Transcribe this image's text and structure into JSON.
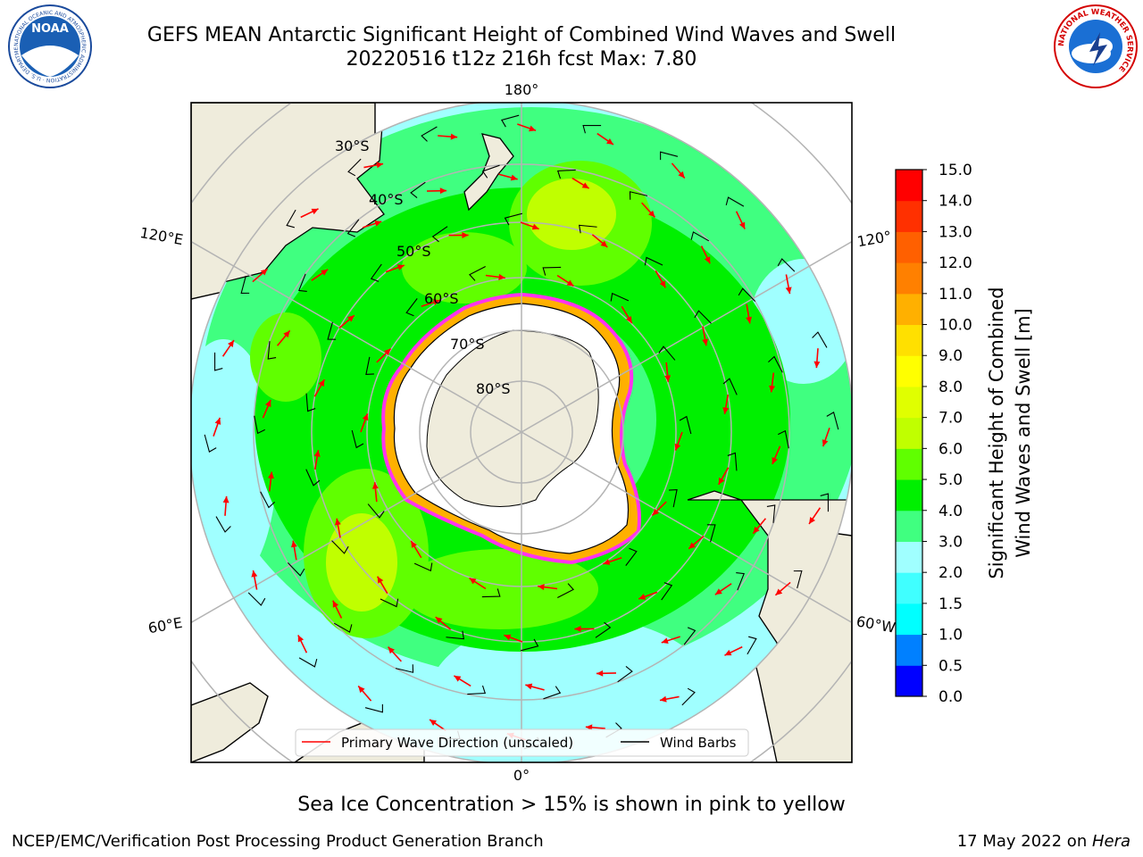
{
  "header": {
    "title_line1": "GEFS MEAN Antarctic Significant Height of Combined Wind Waves and Swell",
    "title_line2": "20220516 t12z 216h fcst   Max: 7.80"
  },
  "logos": {
    "noaa": {
      "text": "NOAA",
      "ring_text": "NATIONAL OCEANIC AND ATMOSPHERIC ADMINISTRATION · U.S. DEPARTMENT OF COMMERCE",
      "icon": "noaa-logo-icon"
    },
    "nws": {
      "ring_text": "NATIONAL WEATHER SERVICE",
      "icon": "nws-logo-icon"
    }
  },
  "map": {
    "projection": "south-polar-stereographic",
    "longitude_labels": [
      "180°",
      "120°E",
      "120°",
      "60°E",
      "60°W",
      "0°"
    ],
    "latitude_labels": [
      "30°S",
      "40°S",
      "50°S",
      "60°S",
      "70°S",
      "80°S"
    ],
    "colors": {
      "land": "#efecdc",
      "ice_sheet": "#ffffff",
      "ice_edge": "#ff33ee",
      "grid": "#b4b4b4",
      "wave_arrow": "#ff0000",
      "wind_barb": "#000000"
    },
    "legend": {
      "primary_wave": "Primary Wave Direction (unscaled)",
      "wind_barbs": "Wind Barbs"
    }
  },
  "colorbar": {
    "label_line1": "Significant Height of Combined",
    "label_line2": "Wind Waves and Swell [m]",
    "levels": [
      "0.0",
      "0.5",
      "1.0",
      "1.5",
      "2.0",
      "3.0",
      "4.0",
      "5.0",
      "6.0",
      "7.0",
      "8.0",
      "9.0",
      "10.0",
      "11.0",
      "12.0",
      "13.0",
      "14.0",
      "15.0"
    ],
    "colors": [
      "#0000ff",
      "#0080ff",
      "#00ffff",
      "#40ffff",
      "#a0ffff",
      "#40ff80",
      "#00f000",
      "#60ff00",
      "#c0ff00",
      "#e0ff00",
      "#ffff00",
      "#ffe000",
      "#ffb000",
      "#ff8000",
      "#ff6000",
      "#ff3000",
      "#ff0000"
    ]
  },
  "note": "Sea Ice Concentration > 15% is shown in pink to yellow",
  "footer": {
    "left": "NCEP/EMC/Verification Post Processing Product Generation Branch",
    "right_date": "17 May 2022 on ",
    "right_machine": "Hera"
  }
}
